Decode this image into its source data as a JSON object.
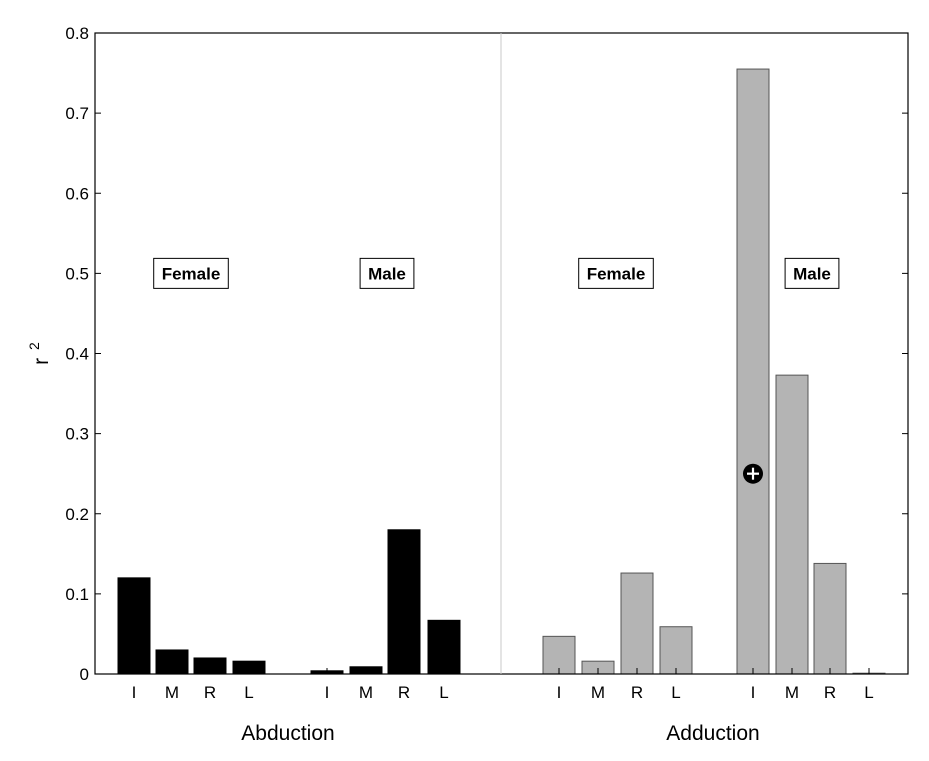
{
  "chart_data": {
    "type": "bar",
    "ylabel": "r",
    "ylabel_sup": "2",
    "ylim": [
      0,
      0.8
    ],
    "yticks": [
      "0",
      "0.1",
      "0.2",
      "0.3",
      "0.4",
      "0.5",
      "0.6",
      "0.7",
      "0.8"
    ],
    "grid": false,
    "panels": [
      {
        "title": "Abduction",
        "color": "#000000",
        "groups": [
          {
            "label": "Female",
            "categories": [
              "I",
              "M",
              "R",
              "L"
            ],
            "values": [
              0.12,
              0.03,
              0.02,
              0.016
            ]
          },
          {
            "label": "Male",
            "categories": [
              "I",
              "M",
              "R",
              "L"
            ],
            "values": [
              0.004,
              0.009,
              0.18,
              0.067
            ]
          }
        ]
      },
      {
        "title": "Adduction",
        "color": "#b4b4b4",
        "groups": [
          {
            "label": "Female",
            "categories": [
              "I",
              "M",
              "R",
              "L"
            ],
            "values": [
              0.047,
              0.016,
              0.126,
              0.059
            ]
          },
          {
            "label": "Male",
            "categories": [
              "I",
              "M",
              "R",
              "L"
            ],
            "values": [
              0.755,
              0.373,
              0.138,
              0.001
            ]
          }
        ]
      }
    ],
    "marker": {
      "symbol": "circle-plus",
      "panel": 1,
      "group": 1,
      "bar": 0,
      "y": 0.25
    }
  }
}
